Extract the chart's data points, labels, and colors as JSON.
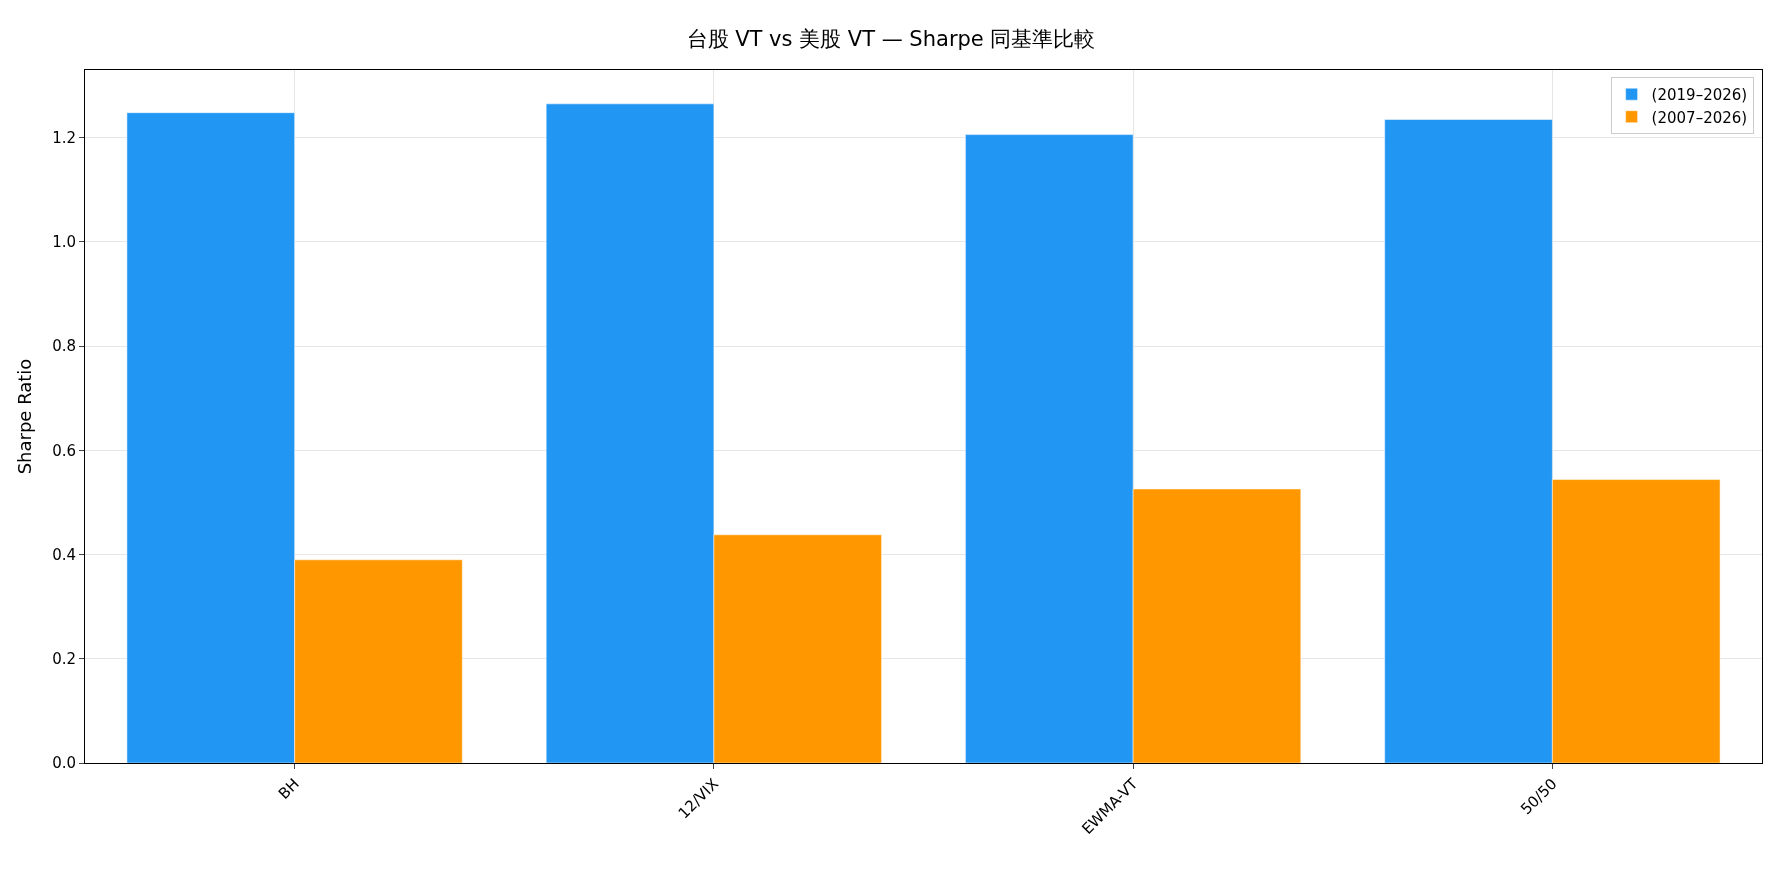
{
  "chart_data": {
    "type": "bar",
    "title": "台股 VT vs 美股 VT — Sharpe 同基準比較",
    "ylabel": "Sharpe Ratio",
    "categories": [
      "BH",
      "12/VIX",
      "EWMA-VT",
      "50/50"
    ],
    "series": [
      {
        "name": "(2019–2026)",
        "color": "#2196f3",
        "values": [
          1.248,
          1.265,
          1.206,
          1.235
        ]
      },
      {
        "name": "(2007–2026)",
        "color": "#ff9800",
        "values": [
          0.39,
          0.438,
          0.526,
          0.544
        ]
      }
    ],
    "ylim": [
      0,
      1.33
    ],
    "yticks": [
      {
        "value": 0,
        "label": "0.0"
      },
      {
        "value": 0.2,
        "label": "0.2"
      },
      {
        "value": 0.4,
        "label": "0.4"
      },
      {
        "value": 0.6,
        "label": "0.6"
      },
      {
        "value": 0.8,
        "label": "0.8"
      },
      {
        "value": 1.0,
        "label": "1.0"
      },
      {
        "value": 1.2,
        "label": "1.2"
      }
    ],
    "grid": true,
    "legend": "top right"
  }
}
